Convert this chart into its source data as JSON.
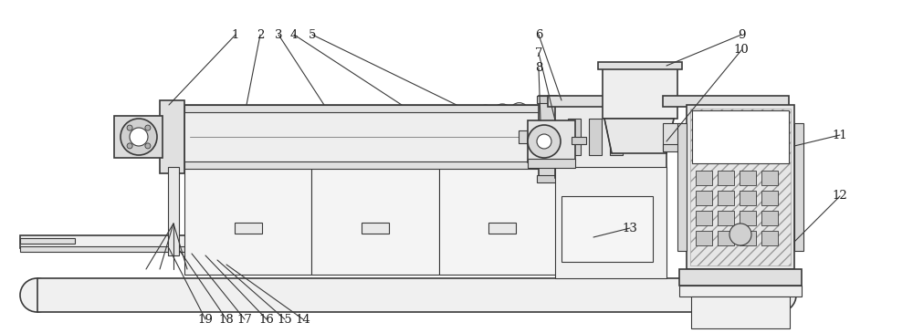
{
  "bg_color": "#ffffff",
  "line_color": "#3a3a3a",
  "label_color": "#1a1a1a",
  "figsize": [
    10.0,
    3.65
  ],
  "dpi": 100
}
